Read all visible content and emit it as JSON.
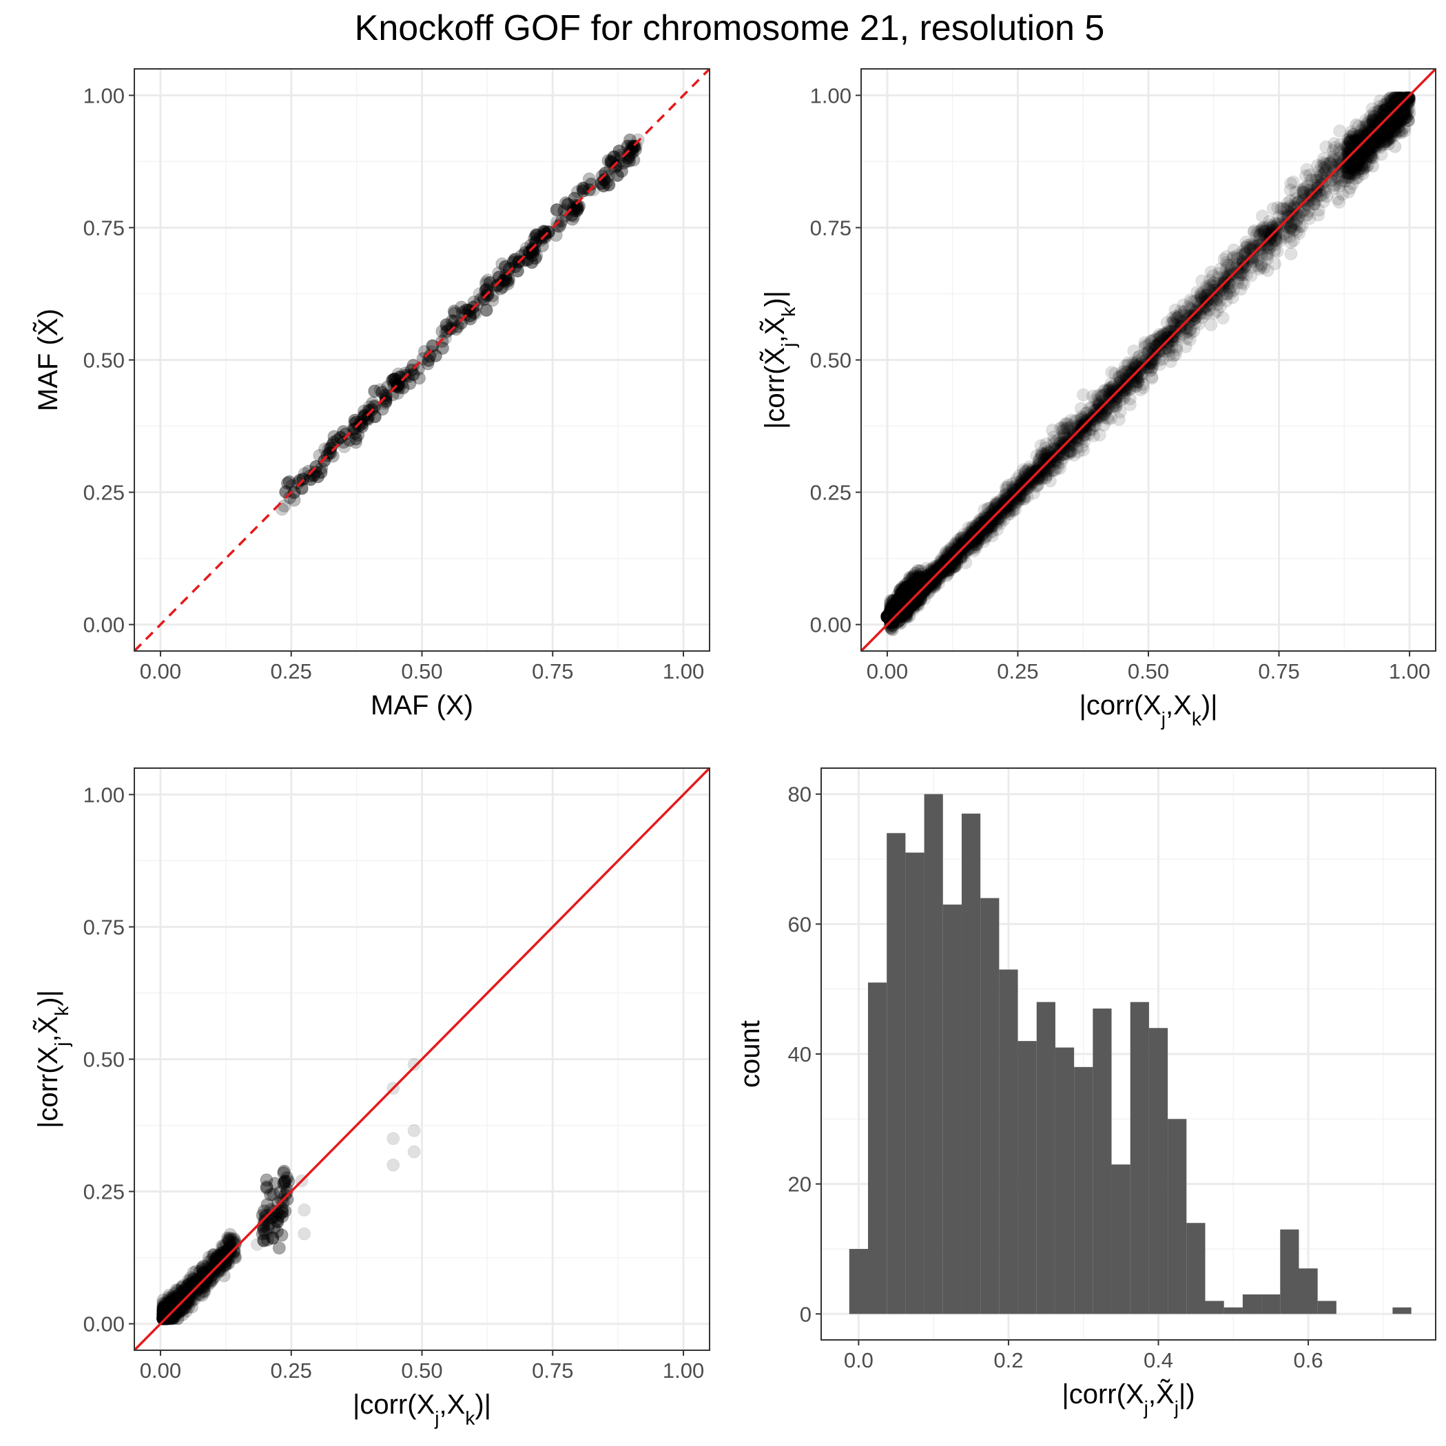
{
  "title": "Knockoff GOF for chromosome 21, resolution 5",
  "colors": {
    "point": "#000000",
    "reference_line": "#e41a1c",
    "bar_fill": "#595959",
    "grid_major": "#ebebeb",
    "grid_minor": "#f3f3f3",
    "panel_border": "#333333"
  },
  "chart_data": [
    {
      "type": "scatter",
      "panel": "top-left",
      "xlabel": "MAF (X)",
      "ylabel": "MAF (X̃)",
      "xlim": [
        -0.05,
        1.05
      ],
      "ylim": [
        -0.05,
        1.05
      ],
      "x_ticks": [
        "0.00",
        "0.25",
        "0.50",
        "0.75",
        "1.00"
      ],
      "y_ticks": [
        "0.00",
        "0.25",
        "0.50",
        "0.75",
        "1.00"
      ],
      "reference_line": {
        "slope": 1,
        "intercept": 0,
        "style": "dashed"
      },
      "points_summary": {
        "approx_count": 300,
        "x_range": [
          0.23,
          0.92
        ],
        "pattern": "tightly along y = x"
      },
      "grid": true,
      "legend": "none"
    },
    {
      "type": "scatter",
      "panel": "top-right",
      "xlabel": "|corr(Xj,Xk)|",
      "ylabel": "|corr(X̃j,X̃k)|",
      "xlim": [
        -0.05,
        1.05
      ],
      "ylim": [
        -0.05,
        1.05
      ],
      "x_ticks": [
        "0.00",
        "0.25",
        "0.50",
        "0.75",
        "1.00"
      ],
      "y_ticks": [
        "0.00",
        "0.25",
        "0.50",
        "0.75",
        "1.00"
      ],
      "reference_line": {
        "slope": 1,
        "intercept": 0,
        "style": "solid"
      },
      "points_summary": {
        "approx_count": "many thousands",
        "x_range": [
          0.0,
          1.0
        ],
        "pattern": "dense along y = x, densest near 0"
      },
      "grid": true,
      "legend": "none"
    },
    {
      "type": "scatter",
      "panel": "bottom-left",
      "xlabel": "|corr(Xj,Xk)|",
      "ylabel": "|corr(Xj,X̃k)|",
      "xlim": [
        -0.05,
        1.05
      ],
      "ylim": [
        -0.05,
        1.05
      ],
      "x_ticks": [
        "0.00",
        "0.25",
        "0.50",
        "0.75",
        "1.00"
      ],
      "y_ticks": [
        "0.00",
        "0.25",
        "0.50",
        "0.75",
        "1.00"
      ],
      "reference_line": {
        "slope": 1,
        "intercept": 0,
        "style": "solid"
      },
      "points_summary": {
        "x_range": [
          0.0,
          0.49
        ],
        "pattern": "mostly below 0.15, a few outliers up to 0.49"
      },
      "grid": true,
      "legend": "none"
    },
    {
      "type": "bar",
      "subtype": "histogram",
      "panel": "bottom-right",
      "xlabel": "|corr(Xj,X̃j|)",
      "ylabel": "count",
      "xlim": [
        -0.05,
        0.77
      ],
      "ylim": [
        -4,
        84
      ],
      "x_ticks": [
        "0.0",
        "0.2",
        "0.4",
        "0.6"
      ],
      "y_ticks": [
        "0",
        "20",
        "40",
        "60",
        "80"
      ],
      "bin_width": 0.025,
      "first_bin_left": -0.0125,
      "counts": [
        10,
        51,
        74,
        71,
        80,
        63,
        77,
        64,
        53,
        42,
        48,
        41,
        38,
        47,
        23,
        48,
        44,
        30,
        14,
        2,
        1,
        3,
        3,
        13,
        7,
        2,
        0,
        0,
        0,
        1
      ],
      "grid": true,
      "legend": "none"
    }
  ]
}
